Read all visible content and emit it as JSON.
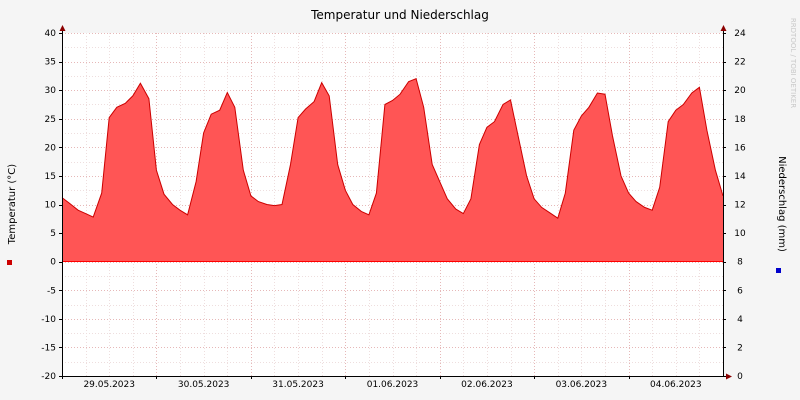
{
  "chart_data": {
    "type": "area",
    "title": "Temperatur und Niederschlag",
    "ylabel": "Temperatur (°C)",
    "ylabel_right": "Niederschlag (mm)",
    "watermark": "RRDTOOL / TOBI OETIKER",
    "ylim": [
      -20,
      40
    ],
    "ylim_right": [
      0,
      24
    ],
    "yticks": [
      "-20",
      "-15",
      "-10",
      "-5",
      "0",
      "5",
      "10",
      "15",
      "20",
      "25",
      "30",
      "35",
      "40"
    ],
    "yticks_right": [
      "0",
      "2",
      "4",
      "6",
      "8",
      "10",
      "12",
      "14",
      "16",
      "18",
      "20",
      "22",
      "24"
    ],
    "x_labels": [
      "29.05.2023",
      "30.05.2023",
      "31.05.2023",
      "01.06.2023",
      "02.06.2023",
      "03.06.2023",
      "04.06.2023"
    ],
    "grid": true,
    "series": [
      {
        "name": "Temperatur",
        "color": "#ff5555",
        "line_color": "#cc0000",
        "marker_color": "#cc0000",
        "x": [
          28.0,
          28.08,
          28.17,
          28.25,
          28.33,
          28.42,
          28.5,
          28.58,
          28.67,
          28.75,
          28.83,
          28.92,
          29.0,
          29.08,
          29.17,
          29.25,
          29.33,
          29.42,
          29.5,
          29.58,
          29.67,
          29.75,
          29.83,
          29.92,
          30.0,
          30.08,
          30.17,
          30.25,
          30.33,
          30.42,
          30.5,
          30.58,
          30.67,
          30.75,
          30.83,
          30.92,
          31.0,
          31.08,
          31.17,
          31.25,
          31.33,
          31.42,
          31.5,
          31.58,
          31.67,
          31.75,
          31.83,
          31.92,
          32.0,
          32.08,
          32.17,
          32.25,
          32.33,
          32.42,
          32.5,
          32.58,
          32.67,
          32.75,
          32.83,
          32.92,
          33.0,
          33.08,
          33.17,
          33.25,
          33.33,
          33.42,
          33.5,
          33.58,
          33.67,
          33.75,
          33.83,
          33.92,
          34.0,
          34.08,
          34.17,
          34.25,
          34.33,
          34.42,
          34.5,
          34.58,
          34.67,
          34.75,
          34.83,
          34.92,
          35.0
        ],
        "values": [
          11.2,
          10.2,
          9.0,
          8.4,
          7.8,
          12.0,
          25.2,
          27.0,
          27.7,
          29.0,
          31.2,
          28.5,
          16.0,
          11.8,
          10.0,
          9.0,
          8.2,
          14.0,
          22.5,
          25.8,
          26.5,
          29.6,
          27.0,
          16.0,
          11.5,
          10.5,
          10.0,
          9.8,
          10.0,
          17.0,
          25.2,
          26.7,
          28.0,
          31.3,
          29.0,
          17.0,
          12.5,
          10.0,
          8.8,
          8.2,
          12.0,
          27.5,
          28.2,
          29.3,
          31.5,
          32.0,
          27.0,
          17.0,
          14.0,
          11.0,
          9.2,
          8.4,
          11.0,
          20.5,
          23.5,
          24.5,
          27.5,
          28.3,
          22.0,
          15.0,
          11.0,
          9.5,
          8.5,
          7.6,
          12.0,
          23.0,
          25.5,
          27.0,
          29.5,
          29.3,
          22.0,
          15.0,
          12.0,
          10.5,
          9.5,
          9.0,
          13.0,
          24.5,
          26.5,
          27.5,
          29.5,
          30.5,
          23.0,
          16.0,
          11.5
        ]
      },
      {
        "name": "Niederschlag",
        "color": "#0000cc",
        "marker_color": "#0000cc",
        "x": [],
        "values": []
      }
    ]
  }
}
